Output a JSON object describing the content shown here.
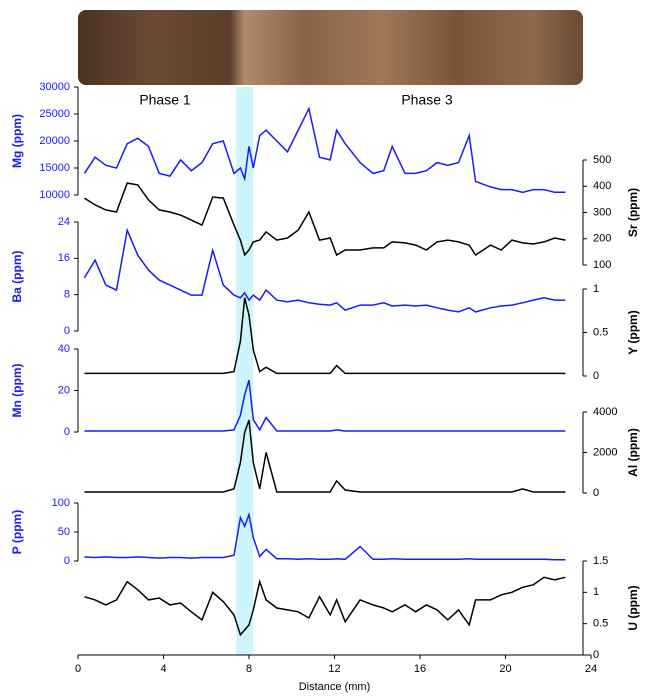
{
  "chart_data": {
    "type": "line",
    "xlabel": "Distance (mm)",
    "xlim": [
      0,
      24
    ],
    "xticks": [
      0,
      4,
      8,
      12,
      16,
      20,
      24
    ],
    "annotations": [
      "Phase 1",
      "Phase 3"
    ],
    "highlight_xrange": [
      7.4,
      8.2
    ],
    "highlight_color": "#ccf6fb",
    "x": [
      0.3,
      0.8,
      1.3,
      1.8,
      2.3,
      2.8,
      3.3,
      3.8,
      4.3,
      4.8,
      5.3,
      5.8,
      6.3,
      6.8,
      7.3,
      7.6,
      7.8,
      8.0,
      8.2,
      8.5,
      8.8,
      9.3,
      9.8,
      10.3,
      10.8,
      11.3,
      11.8,
      12.1,
      12.5,
      13.2,
      13.8,
      14.3,
      14.7,
      15.3,
      15.8,
      16.3,
      16.8,
      17.3,
      17.8,
      18.3,
      18.6,
      19.3,
      19.8,
      20.3,
      20.8,
      21.3,
      21.8,
      22.3,
      22.8
    ],
    "panels": [
      {
        "ylabel": "Mg (ppm)",
        "side": "left",
        "color": "#1a1aff",
        "ylim": [
          10000,
          30000
        ],
        "yticks": [
          10000,
          15000,
          20000,
          25000,
          30000
        ],
        "values": [
          14000,
          17000,
          15500,
          15000,
          19500,
          20500,
          19000,
          14000,
          13500,
          16500,
          14500,
          16000,
          19500,
          20000,
          14000,
          15000,
          13000,
          19000,
          15000,
          21000,
          22000,
          20000,
          18000,
          22000,
          26000,
          17000,
          16500,
          22000,
          19500,
          16000,
          14000,
          14500,
          19000,
          14000,
          14000,
          14500,
          16000,
          15500,
          16000,
          21000,
          12500,
          11500,
          11000,
          11000,
          10500,
          11000,
          11000,
          10500,
          10500
        ]
      },
      {
        "ylabel": "Sr (ppm)",
        "side": "right",
        "color": "#000000",
        "ylim": [
          100,
          500
        ],
        "yticks": [
          100,
          200,
          300,
          400,
          500
        ],
        "values": [
          355,
          329,
          310,
          302,
          412,
          405,
          348,
          310,
          302,
          290,
          271,
          252,
          359,
          355,
          252,
          195,
          138,
          157,
          188,
          195,
          226,
          195,
          203,
          233,
          302,
          195,
          203,
          138,
          157,
          157,
          165,
          165,
          188,
          184,
          176,
          157,
          188,
          195,
          188,
          176,
          138,
          176,
          157,
          195,
          184,
          180,
          188,
          203,
          195
        ]
      },
      {
        "ylabel": "Ba (ppm)",
        "side": "left",
        "color": "#1a1aff",
        "ylim": [
          0,
          24
        ],
        "yticks": [
          0,
          8,
          16,
          24
        ],
        "values": [
          11.7,
          15.6,
          10.1,
          9,
          22.2,
          16.7,
          13.4,
          11.2,
          10.1,
          9,
          7.9,
          7.9,
          17.8,
          10.1,
          7.9,
          7.3,
          8.4,
          6.8,
          7.9,
          6.8,
          9,
          6.8,
          6.4,
          6.8,
          6.2,
          5.9,
          5.7,
          6.2,
          4.6,
          5.7,
          5.7,
          6.2,
          5.5,
          5.7,
          5.5,
          5.7,
          5.1,
          4.6,
          4.2,
          5.1,
          4.2,
          5.1,
          5.5,
          5.7,
          6.2,
          6.8,
          7.3,
          6.8,
          6.8
        ]
      },
      {
        "ylabel": "Y (ppm)",
        "side": "right",
        "color": "#000000",
        "ylim": [
          0,
          1
        ],
        "yticks": [
          0,
          0.5,
          1
        ],
        "values": [
          0.03,
          0.03,
          0.03,
          0.03,
          0.03,
          0.03,
          0.03,
          0.03,
          0.03,
          0.03,
          0.03,
          0.03,
          0.03,
          0.03,
          0.05,
          0.4,
          0.9,
          0.7,
          0.3,
          0.05,
          0.1,
          0.03,
          0.03,
          0.03,
          0.03,
          0.03,
          0.03,
          0.12,
          0.03,
          0.03,
          0.03,
          0.03,
          0.03,
          0.03,
          0.03,
          0.03,
          0.03,
          0.03,
          0.03,
          0.03,
          0.03,
          0.03,
          0.03,
          0.03,
          0.03,
          0.03,
          0.03,
          0.03,
          0.03
        ]
      },
      {
        "ylabel": "Mn (ppm)",
        "side": "left",
        "color": "#1a1aff",
        "ylim": [
          0,
          40
        ],
        "yticks": [
          0,
          20,
          40
        ],
        "values": [
          0.5,
          0.5,
          0.5,
          0.5,
          0.5,
          0.5,
          0.5,
          0.5,
          0.5,
          0.5,
          0.5,
          0.5,
          0.5,
          0.5,
          1,
          8,
          18,
          25,
          6,
          1,
          7,
          0.5,
          0.5,
          0.5,
          0.5,
          0.5,
          0.5,
          1,
          0.5,
          0.5,
          0.5,
          0.5,
          0.5,
          0.5,
          0.5,
          0.5,
          0.5,
          0.5,
          0.5,
          0.5,
          0.5,
          0.5,
          0.5,
          0.5,
          0.5,
          0.5,
          0.5,
          0.5,
          0.5
        ]
      },
      {
        "ylabel": "Al (ppm)",
        "side": "right",
        "color": "#000000",
        "ylim": [
          0,
          4000
        ],
        "yticks": [
          0,
          2000,
          4000
        ],
        "values": [
          50,
          50,
          50,
          50,
          50,
          50,
          50,
          50,
          50,
          50,
          50,
          50,
          50,
          50,
          200,
          1500,
          3000,
          3600,
          1500,
          200,
          2000,
          50,
          50,
          50,
          50,
          50,
          50,
          600,
          150,
          50,
          50,
          50,
          50,
          50,
          50,
          50,
          50,
          50,
          50,
          50,
          50,
          50,
          50,
          50,
          200,
          50,
          50,
          50,
          50
        ]
      },
      {
        "ylabel": "P (ppm)",
        "side": "left",
        "color": "#1a1aff",
        "ylim": [
          0,
          100
        ],
        "yticks": [
          0,
          50,
          100
        ],
        "values": [
          7,
          6,
          7,
          6,
          6,
          7,
          6,
          5,
          6,
          6,
          5,
          6,
          6,
          6,
          10,
          75,
          60,
          80,
          40,
          8,
          20,
          4,
          4,
          3,
          4,
          3,
          3,
          4,
          3,
          25,
          3,
          3,
          4,
          3,
          3,
          3,
          3,
          3,
          3,
          4,
          3,
          3,
          3,
          3,
          3,
          3,
          3,
          2,
          2
        ]
      },
      {
        "ylabel": "U (ppm)",
        "side": "right",
        "color": "#000000",
        "ylim": [
          0,
          1.5
        ],
        "yticks": [
          0,
          0.5,
          1,
          1.5
        ],
        "values": [
          0.93,
          0.88,
          0.8,
          0.88,
          1.17,
          1.04,
          0.88,
          0.91,
          0.8,
          0.83,
          0.69,
          0.56,
          1.0,
          0.85,
          0.64,
          0.32,
          0.4,
          0.48,
          0.72,
          1.17,
          0.88,
          0.75,
          0.72,
          0.69,
          0.59,
          0.93,
          0.64,
          0.88,
          0.53,
          0.88,
          0.8,
          0.75,
          0.69,
          0.8,
          0.69,
          0.8,
          0.72,
          0.56,
          0.72,
          0.48,
          0.88,
          0.88,
          0.96,
          1.0,
          1.08,
          1.12,
          1.24,
          1.2,
          1.24
        ]
      }
    ]
  }
}
